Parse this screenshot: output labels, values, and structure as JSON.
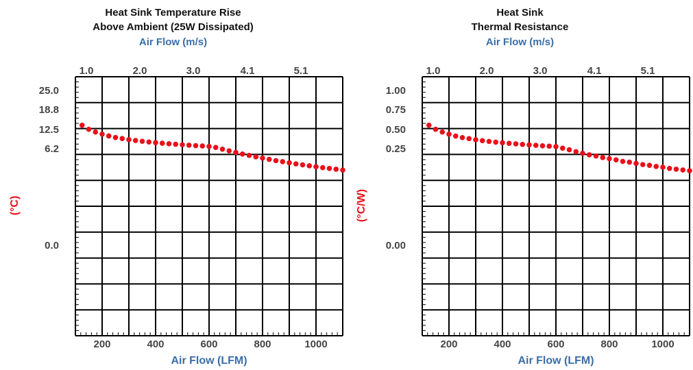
{
  "chart_data": [
    {
      "type": "scatter",
      "title": "Heat Sink Temperature Rise",
      "subtitle": "Above Ambient (25W Dissipated)",
      "top_xlabel": "Air Flow (m/s)",
      "top_ticks": [
        "1.0",
        "2.0",
        "3.0",
        "4.1",
        "5.1"
      ],
      "xlabel": "Air Flow (LFM)",
      "x_ticks": [
        "200",
        "400",
        "600",
        "800",
        "1000"
      ],
      "ylabel": "(°C)",
      "y_ticks": [
        "25.0",
        "18.8",
        "12.5",
        "6.2",
        "0.0"
      ],
      "xlim": [
        100,
        1100
      ],
      "series": [
        {
          "x": [
            125,
            150,
            175,
            200,
            225,
            250,
            275,
            300,
            325,
            350,
            375,
            400,
            425,
            450,
            475,
            500,
            525,
            550,
            575,
            600,
            625,
            650,
            675,
            700,
            725,
            750,
            775,
            800,
            825,
            850,
            875,
            900,
            925,
            950,
            975,
            1000,
            1025,
            1050,
            1075,
            1100
          ],
          "y": [
            13.2,
            11.9,
            11.0,
            10.3,
            9.7,
            9.2,
            8.85,
            8.5,
            8.2,
            7.95,
            7.72,
            7.52,
            7.32,
            7.14,
            6.98,
            6.82,
            6.67,
            6.53,
            6.4,
            6.27,
            6.15,
            6.04,
            5.93,
            5.83,
            5.73,
            5.64,
            5.55,
            5.47,
            5.39,
            5.31,
            5.24,
            5.17,
            5.1,
            5.04,
            4.98,
            4.92,
            4.86,
            4.81,
            4.76,
            4.71
          ]
        }
      ],
      "marker_color": "#e8101a",
      "grid": true
    },
    {
      "type": "scatter",
      "title": "Heat Sink",
      "subtitle": "Thermal Resistance",
      "top_xlabel": "Air Flow (m/s)",
      "top_ticks": [
        "1.0",
        "2.0",
        "3.0",
        "4.1",
        "5.1"
      ],
      "xlabel": "Air Flow (LFM)",
      "x_ticks": [
        "200",
        "400",
        "600",
        "800",
        "1000"
      ],
      "ylabel": "(°C/W)",
      "y_ticks": [
        "1.00",
        "0.75",
        "0.50",
        "0.25",
        "0.00"
      ],
      "xlim": [
        100,
        1100
      ],
      "series": [
        {
          "x": [
            125,
            150,
            175,
            200,
            225,
            250,
            275,
            300,
            325,
            350,
            375,
            400,
            425,
            450,
            475,
            500,
            525,
            550,
            575,
            600,
            625,
            650,
            675,
            700,
            725,
            750,
            775,
            800,
            825,
            850,
            875,
            900,
            925,
            950,
            975,
            1000,
            1025,
            1050,
            1075,
            1100
          ],
          "y": [
            0.528,
            0.476,
            0.44,
            0.412,
            0.388,
            0.368,
            0.354,
            0.34,
            0.328,
            0.318,
            0.309,
            0.301,
            0.293,
            0.286,
            0.279,
            0.273,
            0.267,
            0.261,
            0.256,
            0.251,
            0.246,
            0.242,
            0.237,
            0.233,
            0.229,
            0.226,
            0.222,
            0.219,
            0.216,
            0.212,
            0.21,
            0.207,
            0.204,
            0.202,
            0.199,
            0.197,
            0.194,
            0.192,
            0.19,
            0.188
          ]
        }
      ],
      "marker_color": "#e8101a",
      "grid": true
    }
  ]
}
